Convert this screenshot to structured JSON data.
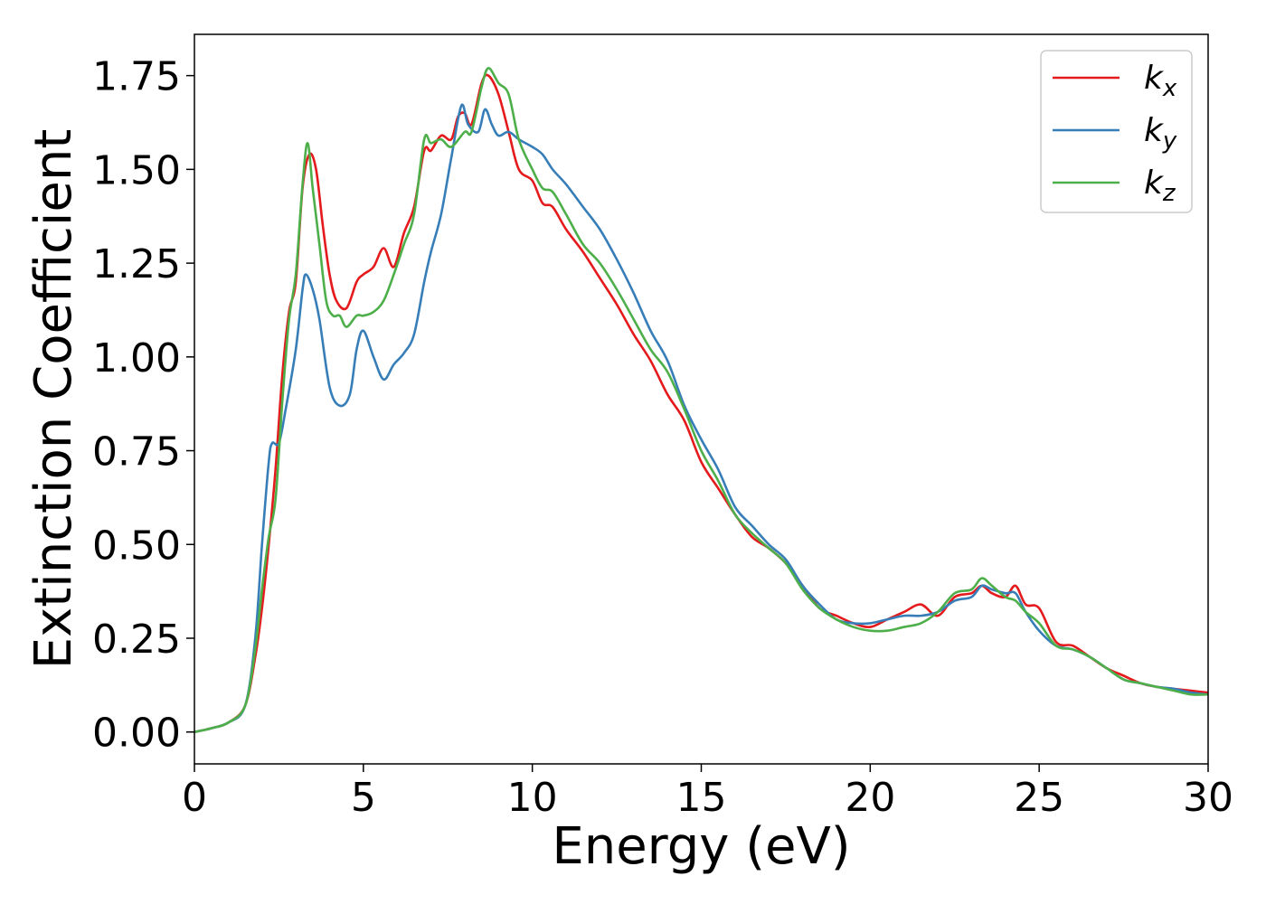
{
  "chart_data": {
    "type": "line",
    "title": "",
    "xlabel": "Energy (eV)",
    "ylabel": "Extinction Coefficient",
    "xlim": [
      0,
      30
    ],
    "ylim": [
      -0.085,
      1.86
    ],
    "xticks": [
      0,
      5,
      10,
      15,
      20,
      25,
      30
    ],
    "xtick_labels": [
      "0",
      "5",
      "10",
      "15",
      "20",
      "25",
      "30"
    ],
    "yticks": [
      0,
      0.25,
      0.5,
      0.75,
      1.0,
      1.25,
      1.5,
      1.75
    ],
    "ytick_labels": [
      "0.00",
      "0.25",
      "0.50",
      "0.75",
      "1.00",
      "1.25",
      "1.50",
      "1.75"
    ],
    "grid": false,
    "legend_position": "top-right",
    "series": [
      {
        "name": "k",
        "subscript": "x",
        "color": "#e41a1c",
        "points": [
          [
            0,
            0
          ],
          [
            0.5,
            0.01
          ],
          [
            1,
            0.025
          ],
          [
            1.5,
            0.07
          ],
          [
            1.8,
            0.2
          ],
          [
            2.0,
            0.33
          ],
          [
            2.2,
            0.5
          ],
          [
            2.4,
            0.7
          ],
          [
            2.6,
            0.95
          ],
          [
            2.8,
            1.12
          ],
          [
            3.0,
            1.2
          ],
          [
            3.2,
            1.45
          ],
          [
            3.4,
            1.54
          ],
          [
            3.6,
            1.5
          ],
          [
            3.8,
            1.35
          ],
          [
            4.0,
            1.22
          ],
          [
            4.2,
            1.15
          ],
          [
            4.5,
            1.13
          ],
          [
            4.8,
            1.2
          ],
          [
            5.0,
            1.22
          ],
          [
            5.3,
            1.24
          ],
          [
            5.6,
            1.29
          ],
          [
            5.9,
            1.24
          ],
          [
            6.2,
            1.33
          ],
          [
            6.5,
            1.4
          ],
          [
            6.8,
            1.55
          ],
          [
            7.0,
            1.55
          ],
          [
            7.3,
            1.59
          ],
          [
            7.6,
            1.58
          ],
          [
            7.8,
            1.64
          ],
          [
            8.0,
            1.65
          ],
          [
            8.2,
            1.62
          ],
          [
            8.5,
            1.73
          ],
          [
            8.7,
            1.75
          ],
          [
            9.0,
            1.7
          ],
          [
            9.3,
            1.6
          ],
          [
            9.6,
            1.5
          ],
          [
            10.0,
            1.47
          ],
          [
            10.3,
            1.41
          ],
          [
            10.6,
            1.4
          ],
          [
            11.0,
            1.34
          ],
          [
            11.5,
            1.28
          ],
          [
            12.0,
            1.21
          ],
          [
            12.5,
            1.14
          ],
          [
            13.0,
            1.06
          ],
          [
            13.5,
            0.99
          ],
          [
            14.0,
            0.9
          ],
          [
            14.5,
            0.83
          ],
          [
            15.0,
            0.72
          ],
          [
            15.5,
            0.65
          ],
          [
            16.0,
            0.58
          ],
          [
            16.5,
            0.52
          ],
          [
            17.0,
            0.49
          ],
          [
            17.5,
            0.45
          ],
          [
            18.0,
            0.39
          ],
          [
            18.5,
            0.33
          ],
          [
            19.0,
            0.31
          ],
          [
            19.5,
            0.29
          ],
          [
            20.0,
            0.28
          ],
          [
            20.5,
            0.3
          ],
          [
            21.0,
            0.32
          ],
          [
            21.5,
            0.34
          ],
          [
            22.0,
            0.31
          ],
          [
            22.5,
            0.36
          ],
          [
            23.0,
            0.37
          ],
          [
            23.3,
            0.39
          ],
          [
            23.6,
            0.37
          ],
          [
            24.0,
            0.36
          ],
          [
            24.3,
            0.39
          ],
          [
            24.6,
            0.34
          ],
          [
            25.0,
            0.33
          ],
          [
            25.5,
            0.24
          ],
          [
            26.0,
            0.23
          ],
          [
            26.5,
            0.2
          ],
          [
            27.0,
            0.17
          ],
          [
            27.5,
            0.15
          ],
          [
            28.0,
            0.13
          ],
          [
            28.5,
            0.12
          ],
          [
            29.0,
            0.115
          ],
          [
            29.5,
            0.11
          ],
          [
            30.0,
            0.105
          ]
        ]
      },
      {
        "name": "k",
        "subscript": "y",
        "color": "#377eb8",
        "points": [
          [
            0,
            0
          ],
          [
            0.5,
            0.01
          ],
          [
            1,
            0.025
          ],
          [
            1.5,
            0.07
          ],
          [
            1.8,
            0.25
          ],
          [
            2.0,
            0.5
          ],
          [
            2.2,
            0.72
          ],
          [
            2.3,
            0.77
          ],
          [
            2.5,
            0.77
          ],
          [
            2.7,
            0.86
          ],
          [
            3.0,
            1.02
          ],
          [
            3.2,
            1.18
          ],
          [
            3.3,
            1.22
          ],
          [
            3.5,
            1.18
          ],
          [
            3.7,
            1.1
          ],
          [
            4.0,
            0.92
          ],
          [
            4.3,
            0.87
          ],
          [
            4.6,
            0.9
          ],
          [
            4.8,
            1.02
          ],
          [
            5.0,
            1.07
          ],
          [
            5.3,
            1.0
          ],
          [
            5.6,
            0.94
          ],
          [
            5.9,
            0.98
          ],
          [
            6.2,
            1.01
          ],
          [
            6.5,
            1.06
          ],
          [
            6.8,
            1.2
          ],
          [
            7.0,
            1.28
          ],
          [
            7.3,
            1.38
          ],
          [
            7.6,
            1.53
          ],
          [
            7.9,
            1.67
          ],
          [
            8.1,
            1.62
          ],
          [
            8.4,
            1.6
          ],
          [
            8.6,
            1.66
          ],
          [
            8.8,
            1.62
          ],
          [
            9.0,
            1.59
          ],
          [
            9.3,
            1.6
          ],
          [
            9.6,
            1.58
          ],
          [
            10.0,
            1.56
          ],
          [
            10.3,
            1.54
          ],
          [
            10.6,
            1.5
          ],
          [
            11.0,
            1.46
          ],
          [
            11.5,
            1.4
          ],
          [
            12.0,
            1.34
          ],
          [
            12.5,
            1.26
          ],
          [
            13.0,
            1.17
          ],
          [
            13.5,
            1.07
          ],
          [
            14.0,
            0.99
          ],
          [
            14.5,
            0.87
          ],
          [
            15.0,
            0.78
          ],
          [
            15.5,
            0.7
          ],
          [
            16.0,
            0.6
          ],
          [
            16.5,
            0.55
          ],
          [
            17.0,
            0.5
          ],
          [
            17.5,
            0.46
          ],
          [
            18.0,
            0.39
          ],
          [
            18.5,
            0.34
          ],
          [
            19.0,
            0.3
          ],
          [
            19.5,
            0.29
          ],
          [
            20.0,
            0.29
          ],
          [
            20.5,
            0.3
          ],
          [
            21.0,
            0.31
          ],
          [
            21.5,
            0.31
          ],
          [
            22.0,
            0.32
          ],
          [
            22.5,
            0.35
          ],
          [
            23.0,
            0.36
          ],
          [
            23.3,
            0.39
          ],
          [
            23.6,
            0.38
          ],
          [
            24.0,
            0.37
          ],
          [
            24.3,
            0.37
          ],
          [
            24.6,
            0.32
          ],
          [
            25.0,
            0.27
          ],
          [
            25.5,
            0.23
          ],
          [
            26.0,
            0.22
          ],
          [
            26.5,
            0.2
          ],
          [
            27.0,
            0.17
          ],
          [
            27.5,
            0.14
          ],
          [
            28.0,
            0.13
          ],
          [
            28.5,
            0.12
          ],
          [
            29.0,
            0.115
          ],
          [
            29.5,
            0.105
          ],
          [
            30.0,
            0.1
          ]
        ]
      },
      {
        "name": "k",
        "subscript": "z",
        "color": "#4daf4a",
        "points": [
          [
            0,
            0
          ],
          [
            0.5,
            0.01
          ],
          [
            1,
            0.025
          ],
          [
            1.5,
            0.07
          ],
          [
            1.8,
            0.22
          ],
          [
            2.0,
            0.38
          ],
          [
            2.2,
            0.52
          ],
          [
            2.4,
            0.62
          ],
          [
            2.6,
            0.88
          ],
          [
            2.8,
            1.1
          ],
          [
            3.0,
            1.22
          ],
          [
            3.2,
            1.46
          ],
          [
            3.35,
            1.57
          ],
          [
            3.5,
            1.45
          ],
          [
            3.7,
            1.3
          ],
          [
            3.9,
            1.15
          ],
          [
            4.1,
            1.11
          ],
          [
            4.3,
            1.11
          ],
          [
            4.5,
            1.08
          ],
          [
            4.8,
            1.11
          ],
          [
            5.0,
            1.11
          ],
          [
            5.3,
            1.12
          ],
          [
            5.6,
            1.15
          ],
          [
            5.9,
            1.22
          ],
          [
            6.2,
            1.3
          ],
          [
            6.5,
            1.38
          ],
          [
            6.8,
            1.58
          ],
          [
            7.0,
            1.57
          ],
          [
            7.3,
            1.58
          ],
          [
            7.6,
            1.56
          ],
          [
            8.0,
            1.6
          ],
          [
            8.2,
            1.6
          ],
          [
            8.5,
            1.72
          ],
          [
            8.7,
            1.77
          ],
          [
            9.0,
            1.73
          ],
          [
            9.3,
            1.7
          ],
          [
            9.6,
            1.58
          ],
          [
            10.0,
            1.5
          ],
          [
            10.3,
            1.45
          ],
          [
            10.6,
            1.44
          ],
          [
            11.0,
            1.38
          ],
          [
            11.5,
            1.3
          ],
          [
            12.0,
            1.25
          ],
          [
            12.5,
            1.18
          ],
          [
            13.0,
            1.1
          ],
          [
            13.5,
            1.02
          ],
          [
            14.0,
            0.96
          ],
          [
            14.5,
            0.86
          ],
          [
            15.0,
            0.75
          ],
          [
            15.5,
            0.67
          ],
          [
            16.0,
            0.58
          ],
          [
            16.5,
            0.53
          ],
          [
            17.0,
            0.49
          ],
          [
            17.5,
            0.45
          ],
          [
            18.0,
            0.38
          ],
          [
            18.5,
            0.33
          ],
          [
            19.0,
            0.3
          ],
          [
            19.5,
            0.28
          ],
          [
            20.0,
            0.27
          ],
          [
            20.5,
            0.27
          ],
          [
            21.0,
            0.28
          ],
          [
            21.5,
            0.29
          ],
          [
            22.0,
            0.32
          ],
          [
            22.5,
            0.37
          ],
          [
            23.0,
            0.38
          ],
          [
            23.3,
            0.41
          ],
          [
            23.6,
            0.39
          ],
          [
            24.0,
            0.36
          ],
          [
            24.3,
            0.35
          ],
          [
            24.6,
            0.32
          ],
          [
            25.0,
            0.29
          ],
          [
            25.5,
            0.23
          ],
          [
            26.0,
            0.22
          ],
          [
            26.5,
            0.2
          ],
          [
            27.0,
            0.17
          ],
          [
            27.5,
            0.14
          ],
          [
            28.0,
            0.13
          ],
          [
            28.5,
            0.12
          ],
          [
            29.0,
            0.11
          ],
          [
            29.5,
            0.1
          ],
          [
            30.0,
            0.1
          ]
        ]
      }
    ]
  }
}
